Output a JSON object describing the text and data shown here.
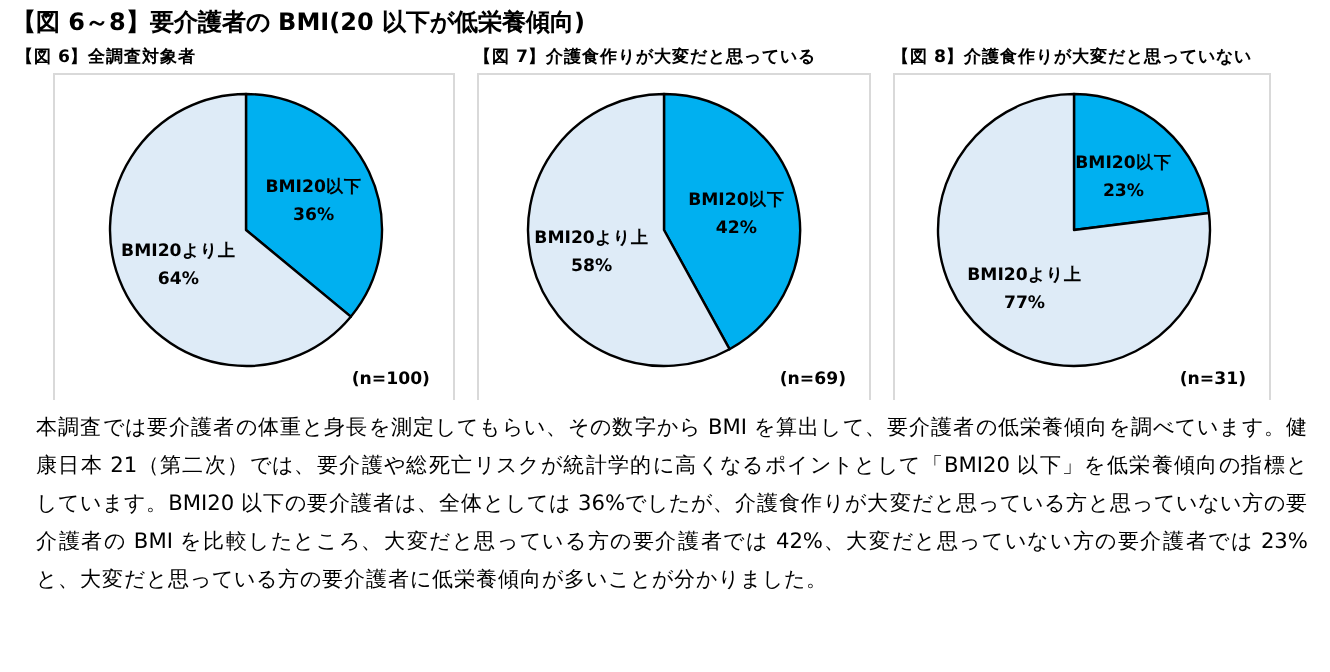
{
  "chart_data": [
    {
      "type": "other",
      "title": "【図 6～8】要介護者の BMI(20 以下が低栄養傾向)",
      "annotations": [
        "本調査では要介護者の体重と身長を測定してもらい、その数字から BMI を算出して、要介護者の低栄養傾向を調べています。健康日本 21（第二次）では、要介護や総死亡リスクが統計学的に高くなるポイントとして「BMI20 以下」を低栄養傾向の指標としています。BMI20 以下の要介護者は、全体としては 36%でしたが、介護食作りが大変だと思っている方と思っていない方の要介護者の BMI を比較したところ、大変だと思っている方の要介護者では 42%、大変だと思っていない方の要介護者では 23%と、大変だと思っている方の要介護者に低栄養傾向が多いことが分かりました。"
      ]
    },
    {
      "type": "pie",
      "title": "【図 6】全調査対象者",
      "categories": [
        "BMI20以下",
        "BMI20より上"
      ],
      "values": [
        36,
        64
      ],
      "colors": [
        "#00b0f0",
        "#deebf7"
      ],
      "value_labels": [
        "36%",
        "64%"
      ],
      "annotations": [
        "(n=100)"
      ]
    },
    {
      "type": "pie",
      "title": "【図 7】介護食作りが大変だと思っている",
      "categories": [
        "BMI20以下",
        "BMI20より上"
      ],
      "values": [
        42,
        58
      ],
      "colors": [
        "#00b0f0",
        "#deebf7"
      ],
      "value_labels": [
        "42%",
        "58%"
      ],
      "annotations": [
        "(n=69)"
      ]
    },
    {
      "type": "pie",
      "title": "【図 8】介護食作りが大変だと思っていない",
      "categories": [
        "BMI20以下",
        "BMI20より上"
      ],
      "values": [
        23,
        77
      ],
      "colors": [
        "#00b0f0",
        "#deebf7"
      ],
      "value_labels": [
        "23%",
        "77%"
      ],
      "annotations": [
        "(n=31)"
      ]
    }
  ]
}
